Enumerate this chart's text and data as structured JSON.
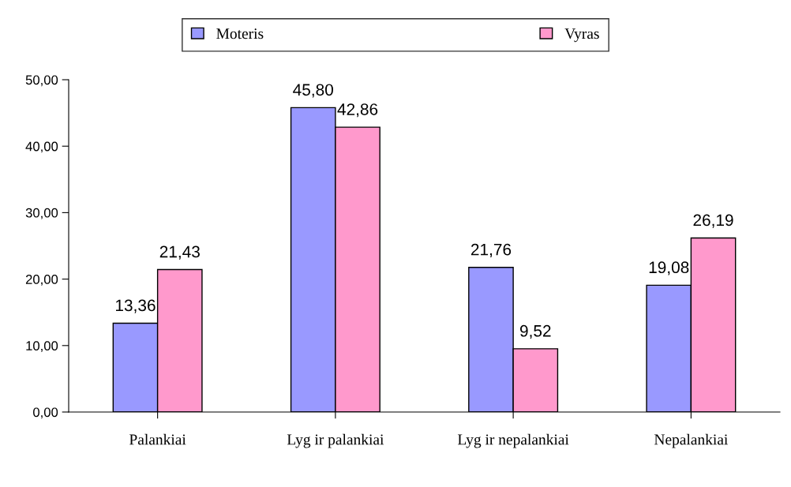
{
  "chart_data": {
    "type": "bar",
    "categories": [
      "Palankiai",
      "Lyg ir palankiai",
      "Lyg ir nepalankiai",
      "Nepalankiai"
    ],
    "series": [
      {
        "name": "Moteris",
        "color": "#9999ff",
        "values": [
          13.36,
          45.8,
          21.76,
          19.08
        ],
        "value_labels": [
          "13,36",
          "45,80",
          "21,76",
          "19,08"
        ]
      },
      {
        "name": "Vyras",
        "color": "#ff99cc",
        "values": [
          21.43,
          42.86,
          9.52,
          26.19
        ],
        "value_labels": [
          "21,43",
          "42,86",
          "9,52",
          "26,19"
        ]
      }
    ],
    "ylim": [
      0,
      50
    ],
    "yticks": [
      {
        "value": 0,
        "label": "0,00"
      },
      {
        "value": 10,
        "label": "10,00"
      },
      {
        "value": 20,
        "label": "20,00"
      },
      {
        "value": 30,
        "label": "30,00"
      },
      {
        "value": 40,
        "label": "40,00"
      },
      {
        "value": 50,
        "label": "50,00"
      }
    ],
    "grid": false,
    "legend": "top"
  }
}
